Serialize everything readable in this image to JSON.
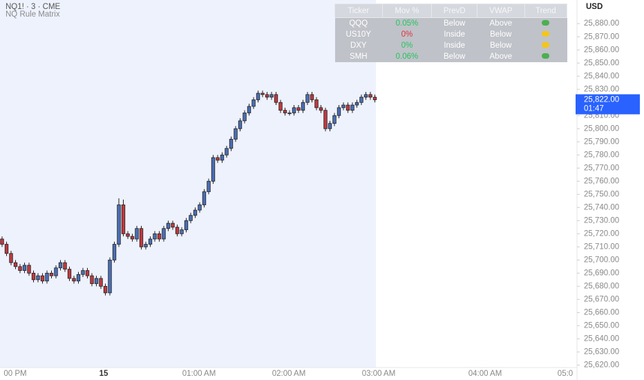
{
  "chart_data": {
    "type": "candlestick",
    "title": "NQ1! · 3 · CME",
    "subtitle": "NQ Rule Matrix",
    "y_axis_label": "USD",
    "x_labels": [
      "00 PM",
      "15",
      "01:00 AM",
      "02:00 AM",
      "03:00 AM",
      "04:00 AM",
      "05:0"
    ],
    "up_color": "#4a6fb5",
    "down_color": "#c0393f",
    "open": [
      25716,
      25712,
      25705,
      25698,
      25695,
      25692,
      25696,
      25690,
      25685,
      25688,
      25684,
      25690,
      25688,
      25694,
      25698,
      25693,
      25686,
      25684,
      25689,
      25692,
      25688,
      25682,
      25686,
      25680,
      25675,
      25700,
      25712,
      25742,
      25720,
      25718,
      25716,
      25724,
      25710,
      25712,
      25716,
      25720,
      25716,
      25724,
      25728,
      25725,
      25720,
      25723,
      25730,
      25734,
      25738,
      25742,
      25752,
      25760,
      25778,
      25776,
      25780,
      25785,
      25792,
      25800,
      25806,
      25812,
      25817,
      25822,
      25827,
      25826,
      25824,
      25826,
      25820,
      25814,
      25812,
      25812,
      25816,
      25814,
      25820,
      25826,
      25822,
      25816,
      25814,
      25800,
      25804,
      25810,
      25816,
      25818,
      25814,
      25818,
      25820,
      25824,
      25826,
      25824
    ],
    "high": [
      25718,
      25714,
      25707,
      25700,
      25697,
      25698,
      25698,
      25692,
      25690,
      25690,
      25692,
      25692,
      25696,
      25700,
      25700,
      25695,
      25688,
      25691,
      25694,
      25694,
      25690,
      25688,
      25688,
      25682,
      25702,
      25714,
      25747,
      25746,
      25722,
      25720,
      25726,
      25726,
      25714,
      25718,
      25722,
      25722,
      25726,
      25730,
      25730,
      25727,
      25725,
      25732,
      25736,
      25740,
      25744,
      25754,
      25762,
      25780,
      25780,
      25782,
      25787,
      25794,
      25802,
      25808,
      25814,
      25819,
      25824,
      25829,
      25829,
      25828,
      25828,
      25828,
      25822,
      25816,
      25814,
      25818,
      25818,
      25822,
      25828,
      25828,
      25824,
      25818,
      25816,
      25806,
      25812,
      25818,
      25820,
      25820,
      25820,
      25822,
      25826,
      25828,
      25828,
      25826
    ],
    "low": [
      25710,
      25703,
      25696,
      25693,
      25690,
      25690,
      25688,
      25683,
      25683,
      25682,
      25682,
      25686,
      25686,
      25692,
      25691,
      25684,
      25682,
      25682,
      25687,
      25686,
      25680,
      25680,
      25678,
      25673,
      25673,
      25698,
      25710,
      25718,
      25716,
      25714,
      25714,
      25708,
      25708,
      25710,
      25714,
      25714,
      25714,
      25722,
      25723,
      25718,
      25718,
      25721,
      25728,
      25732,
      25736,
      25740,
      25750,
      25758,
      25774,
      25774,
      25778,
      25783,
      25790,
      25798,
      25804,
      25810,
      25815,
      25820,
      25824,
      25822,
      25822,
      25818,
      25812,
      25810,
      25810,
      25810,
      25812,
      25812,
      25818,
      25820,
      25814,
      25812,
      25798,
      25798,
      25802,
      25808,
      25814,
      25812,
      25812,
      25816,
      25818,
      25822,
      25822,
      25820
    ],
    "close": [
      25712,
      25705,
      25698,
      25695,
      25692,
      25696,
      25690,
      25685,
      25688,
      25684,
      25690,
      25688,
      25694,
      25698,
      25693,
      25686,
      25684,
      25689,
      25692,
      25688,
      25682,
      25686,
      25680,
      25675,
      25700,
      25712,
      25742,
      25720,
      25718,
      25716,
      25724,
      25710,
      25712,
      25716,
      25720,
      25716,
      25724,
      25728,
      25725,
      25720,
      25723,
      25730,
      25734,
      25738,
      25742,
      25752,
      25760,
      25778,
      25776,
      25780,
      25785,
      25792,
      25800,
      25806,
      25812,
      25817,
      25822,
      25827,
      25826,
      25824,
      25826,
      25820,
      25814,
      25812,
      25812,
      25816,
      25814,
      25820,
      25826,
      25822,
      25816,
      25814,
      25800,
      25804,
      25810,
      25816,
      25818,
      25814,
      25818,
      25820,
      25824,
      25826,
      25824,
      25822
    ],
    "ylim": [
      25616,
      25898
    ],
    "yticks": [
      {
        "value": 25620,
        "label": "25,620.00"
      },
      {
        "value": 25630,
        "label": "25,630.00"
      },
      {
        "value": 25640,
        "label": "25,640.00"
      },
      {
        "value": 25650,
        "label": "25,650.00"
      },
      {
        "value": 25660,
        "label": "25,660.00"
      },
      {
        "value": 25670,
        "label": "25,670.00"
      },
      {
        "value": 25680,
        "label": "25,680.00"
      },
      {
        "value": 25690,
        "label": "25,690.00"
      },
      {
        "value": 25700,
        "label": "25,700.00"
      },
      {
        "value": 25710,
        "label": "25,710.00"
      },
      {
        "value": 25720,
        "label": "25,720.00"
      },
      {
        "value": 25730,
        "label": "25,730.00"
      },
      {
        "value": 25740,
        "label": "25,740.00"
      },
      {
        "value": 25750,
        "label": "25,750.00"
      },
      {
        "value": 25760,
        "label": "25,760.00"
      },
      {
        "value": 25770,
        "label": "25,770.00"
      },
      {
        "value": 25780,
        "label": "25,780.00"
      },
      {
        "value": 25790,
        "label": "25,790.00"
      },
      {
        "value": 25800,
        "label": "25,800.00"
      },
      {
        "value": 25810,
        "label": "25,810.00"
      },
      {
        "value": 25830,
        "label": "25,830.00"
      },
      {
        "value": 25840,
        "label": "25,840.00"
      },
      {
        "value": 25850,
        "label": "25,850.00"
      },
      {
        "value": 25860,
        "label": "25,860.00"
      },
      {
        "value": 25870,
        "label": "25,870.00"
      },
      {
        "value": 25880,
        "label": "25,880.00"
      }
    ],
    "last_price": {
      "value": 25822,
      "label": "25,822.00"
    },
    "countdown": "01:47",
    "last_price_color": "#2962ff",
    "rule_matrix": {
      "columns": [
        "Ticker",
        "Mov %",
        "PrevD",
        "VWAP",
        "Trend"
      ],
      "rows": [
        [
          "QQQ",
          "0.05%",
          "Below",
          "Above"
        ],
        [
          "US10Y",
          "0%",
          "Inside",
          "Below"
        ],
        [
          "DXY",
          "0%",
          "Inside",
          "Below"
        ],
        [
          "SMH",
          "0.06%",
          "Below",
          "Above"
        ]
      ],
      "mov_colors": [
        "#22c55e",
        "#e0323a",
        "#22c55e",
        "#22c55e"
      ],
      "trend_colors": [
        "#4caf50",
        "#f5c518",
        "#f5c518",
        "#4caf50"
      ]
    }
  }
}
